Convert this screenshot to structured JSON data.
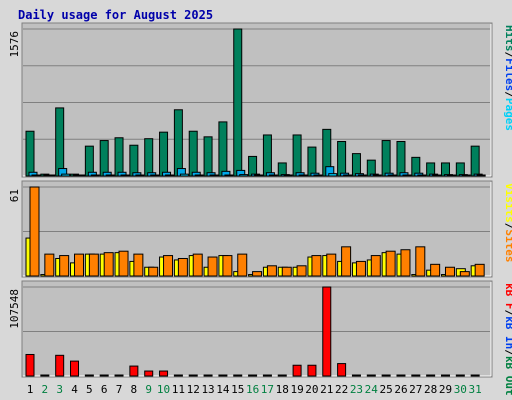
{
  "title": "Daily usage for August 2025",
  "colors": {
    "background": "#d8d8d8",
    "panel": "#c0c0c0",
    "hits": "#00805c",
    "files": "#00a8e8",
    "pages": "#00d0f8",
    "visits": "#ffff00",
    "sites": "#ff8000",
    "kb_in": "#0040f0",
    "kb_out": "#008040",
    "kb_f": "#ff0000",
    "title": "#0000aa",
    "weekday_label": "#000000",
    "weekend_label": "#008040"
  },
  "chart_data": [
    {
      "type": "bar",
      "name": "hits-files-pages",
      "ymax_label": "1576",
      "ylim": [
        0,
        1576
      ],
      "grid": true,
      "legend": [
        {
          "text": "Hits",
          "color": "#00805c"
        },
        {
          "text": "Files",
          "color": "#0040f0"
        },
        {
          "text": "Pages",
          "color": "#00d0f8"
        }
      ],
      "series": [
        {
          "name": "Hits",
          "color": "#00805c",
          "values": [
            480,
            20,
            730,
            20,
            320,
            380,
            410,
            330,
            400,
            470,
            710,
            480,
            420,
            580,
            1576,
            210,
            440,
            140,
            440,
            310,
            500,
            370,
            240,
            170,
            380,
            370,
            200,
            140,
            140,
            140,
            320
          ]
        },
        {
          "name": "Files",
          "color": "#00a8e8",
          "values": [
            40,
            10,
            80,
            5,
            40,
            40,
            40,
            35,
            35,
            40,
            80,
            40,
            35,
            50,
            60,
            20,
            35,
            15,
            35,
            30,
            100,
            30,
            25,
            20,
            30,
            35,
            30,
            20,
            15,
            15,
            20
          ]
        },
        {
          "name": "Pages",
          "color": "#00d0f8",
          "values": [
            10,
            0,
            20,
            0,
            10,
            10,
            10,
            8,
            8,
            10,
            20,
            10,
            8,
            10,
            15,
            5,
            8,
            4,
            8,
            6,
            25,
            6,
            5,
            4,
            6,
            8,
            6,
            4,
            3,
            3,
            5
          ]
        }
      ]
    },
    {
      "type": "bar",
      "name": "visits-sites",
      "ymax_label": "61",
      "ylim": [
        0,
        61
      ],
      "grid": true,
      "legend": [
        {
          "text": "Visits",
          "color": "#ffff00"
        },
        {
          "text": "Sites",
          "color": "#ff8000"
        }
      ],
      "series": [
        {
          "name": "Visits",
          "color": "#ffff00",
          "values": [
            26,
            1,
            12,
            9,
            15,
            15,
            16,
            10,
            6,
            13,
            11,
            14,
            6,
            14,
            3,
            1,
            6,
            6,
            6,
            13,
            14,
            10,
            9,
            11,
            16,
            15,
            1,
            4,
            1,
            5,
            7
          ]
        },
        {
          "name": "Sites",
          "color": "#ff8000",
          "values": [
            61,
            15,
            14,
            15,
            15,
            16,
            17,
            15,
            6,
            14,
            12,
            15,
            13,
            14,
            15,
            3,
            7,
            6,
            7,
            14,
            15,
            20,
            10,
            14,
            17,
            18,
            20,
            8,
            6,
            3,
            8
          ]
        }
      ]
    },
    {
      "type": "bar",
      "name": "kbytes",
      "ymax_label": "107548",
      "ylim": [
        0,
        107548
      ],
      "grid": true,
      "legend": [
        {
          "text": "kB F",
          "color": "#ff0000"
        },
        {
          "text": "kB In",
          "color": "#0040f0"
        },
        {
          "text": "kB Out",
          "color": "#008040"
        }
      ],
      "series": [
        {
          "name": "kB F",
          "color": "#ff0000",
          "values": [
            26000,
            1000,
            25000,
            18000,
            1000,
            1000,
            1000,
            12000,
            6000,
            6000,
            1000,
            1000,
            1000,
            1000,
            1000,
            1000,
            1000,
            1000,
            13000,
            13000,
            107548,
            15000,
            1000,
            1000,
            1000,
            1000,
            1000,
            1000,
            1000,
            1000,
            1000
          ]
        }
      ]
    }
  ],
  "x_labels": [
    "1",
    "2",
    "3",
    "4",
    "5",
    "6",
    "7",
    "8",
    "9",
    "10",
    "11",
    "12",
    "13",
    "14",
    "15",
    "16",
    "17",
    "18",
    "19",
    "20",
    "21",
    "22",
    "23",
    "24",
    "25",
    "26",
    "27",
    "28",
    "29",
    "30",
    "31"
  ],
  "weekend_days": [
    "2",
    "3",
    "9",
    "10",
    "16",
    "17",
    "23",
    "24",
    "30",
    "31"
  ]
}
